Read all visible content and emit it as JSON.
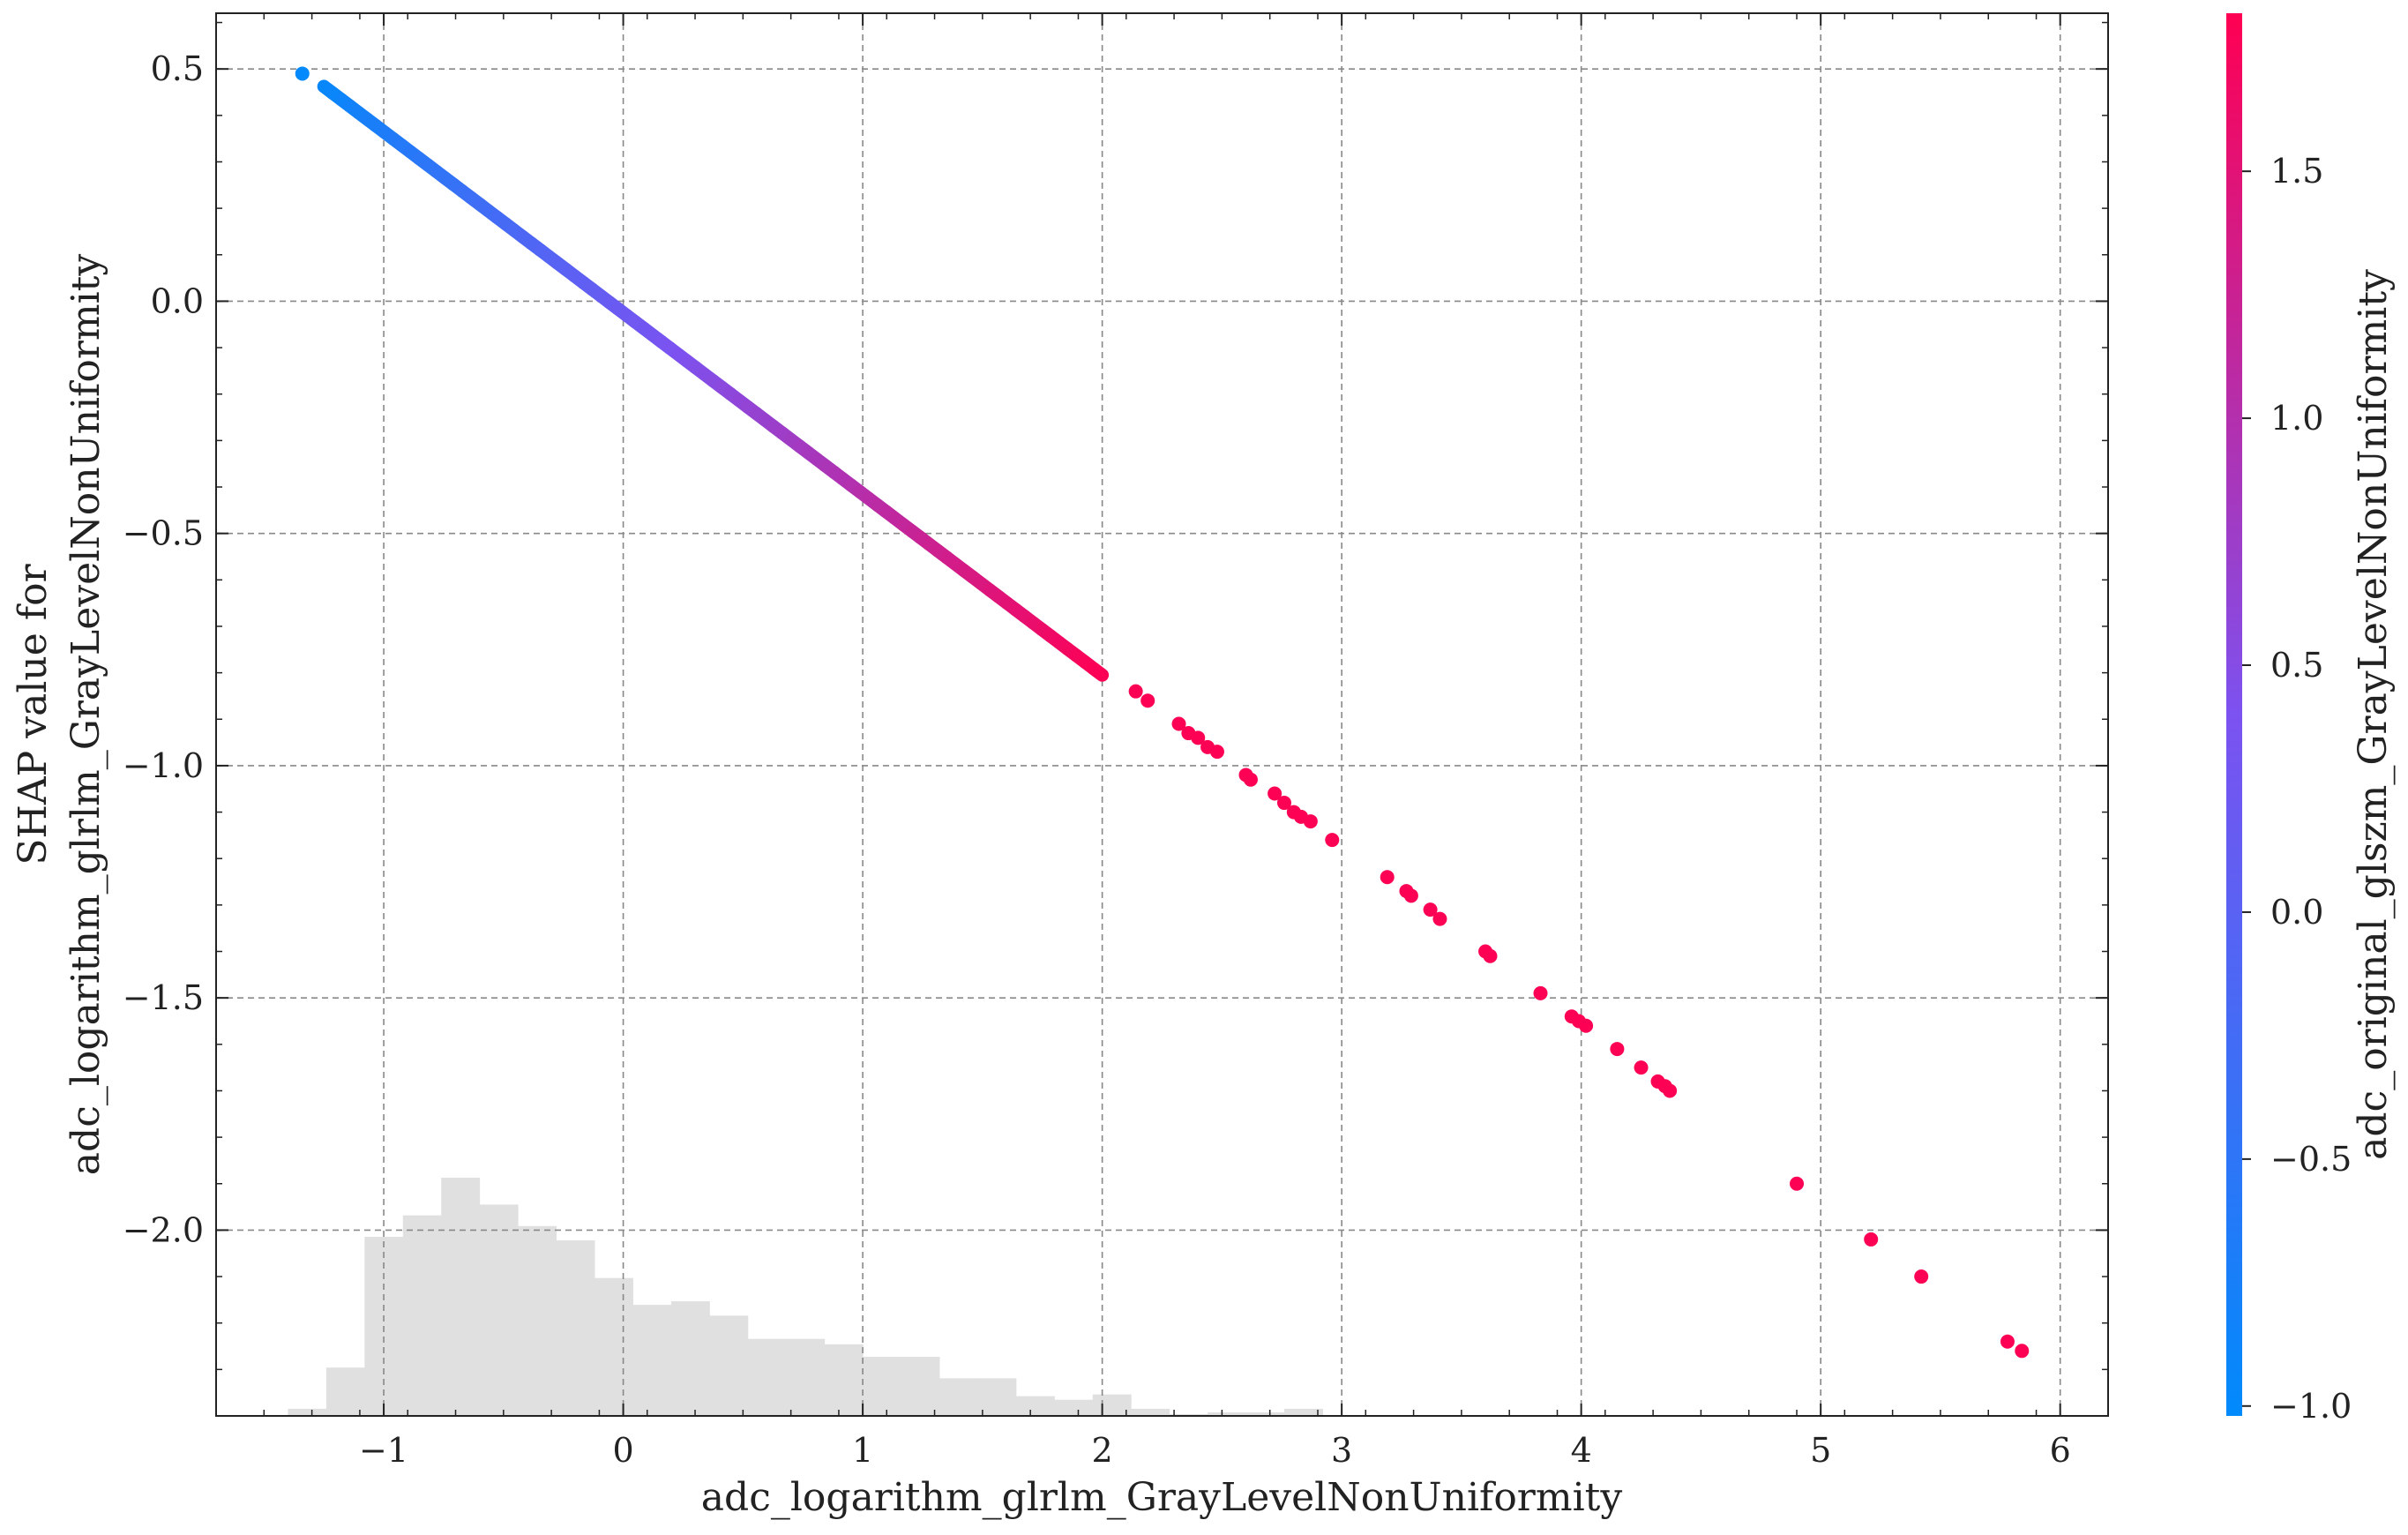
{
  "chart_data": {
    "type": "scatter",
    "title": "",
    "xlabel": "adc_logarithm_glrlm_GrayLevelNonUniformity",
    "ylabel_lines": [
      "SHAP value for",
      "adc_logarithm_glrlm_GrayLevelNonUniformity"
    ],
    "colorbar_label": "adc_original_glszm_GrayLevelNonUniformity",
    "xlim": [
      -1.7,
      6.2
    ],
    "ylim": [
      -2.4,
      0.62
    ],
    "x_ticks": [
      -1,
      0,
      1,
      2,
      3,
      4,
      5,
      6
    ],
    "x_tick_labels": [
      "−1",
      "0",
      "1",
      "2",
      "3",
      "4",
      "5",
      "6"
    ],
    "y_ticks": [
      0.5,
      0.0,
      -0.5,
      -1.0,
      -1.5,
      -2.0
    ],
    "y_tick_labels": [
      "0.5",
      "0.0",
      "−0.5",
      "−1.0",
      "−1.5",
      "−2.0"
    ],
    "colorbar_range": [
      -1.02,
      1.82
    ],
    "colorbar_ticks": [
      1.5,
      1.0,
      0.5,
      0.0,
      -0.5,
      -1.0
    ],
    "colorbar_tick_labels": [
      "1.5",
      "1.0",
      "0.5",
      "0.0",
      "−0.5",
      "−1.0"
    ],
    "colors": {
      "low": "#008afb",
      "mid": "#7c52f0",
      "high": "#ff0052",
      "grid": "#888888",
      "hist": "#e0e0e0"
    },
    "grid": true,
    "line_relation": {
      "slope": -0.39,
      "intercept": -0.025
    },
    "line_x_range": [
      -1.25,
      2.0
    ],
    "points": [
      {
        "x": -1.34,
        "y": 0.49,
        "c": -1.0
      },
      {
        "x": 2.14,
        "y": -0.84,
        "c": 1.8
      },
      {
        "x": 2.19,
        "y": -0.86,
        "c": 1.8
      },
      {
        "x": 2.32,
        "y": -0.91,
        "c": 1.8
      },
      {
        "x": 2.36,
        "y": -0.93,
        "c": 1.8
      },
      {
        "x": 2.4,
        "y": -0.94,
        "c": 1.8
      },
      {
        "x": 2.44,
        "y": -0.96,
        "c": 1.8
      },
      {
        "x": 2.48,
        "y": -0.97,
        "c": 1.8
      },
      {
        "x": 2.6,
        "y": -1.02,
        "c": 1.8
      },
      {
        "x": 2.62,
        "y": -1.03,
        "c": 1.8
      },
      {
        "x": 2.72,
        "y": -1.06,
        "c": 1.8
      },
      {
        "x": 2.76,
        "y": -1.08,
        "c": 1.8
      },
      {
        "x": 2.8,
        "y": -1.1,
        "c": 1.8
      },
      {
        "x": 2.83,
        "y": -1.11,
        "c": 1.8
      },
      {
        "x": 2.87,
        "y": -1.12,
        "c": 1.8
      },
      {
        "x": 2.96,
        "y": -1.16,
        "c": 1.8
      },
      {
        "x": 3.19,
        "y": -1.24,
        "c": 1.8
      },
      {
        "x": 3.27,
        "y": -1.27,
        "c": 1.8
      },
      {
        "x": 3.29,
        "y": -1.28,
        "c": 1.8
      },
      {
        "x": 3.37,
        "y": -1.31,
        "c": 1.8
      },
      {
        "x": 3.41,
        "y": -1.33,
        "c": 1.8
      },
      {
        "x": 3.6,
        "y": -1.4,
        "c": 1.8
      },
      {
        "x": 3.62,
        "y": -1.41,
        "c": 1.8
      },
      {
        "x": 3.83,
        "y": -1.49,
        "c": 1.8
      },
      {
        "x": 3.96,
        "y": -1.54,
        "c": 1.8
      },
      {
        "x": 3.99,
        "y": -1.55,
        "c": 1.8
      },
      {
        "x": 4.02,
        "y": -1.56,
        "c": 1.8
      },
      {
        "x": 4.15,
        "y": -1.61,
        "c": 1.8
      },
      {
        "x": 4.25,
        "y": -1.65,
        "c": 1.8
      },
      {
        "x": 4.32,
        "y": -1.68,
        "c": 1.8
      },
      {
        "x": 4.35,
        "y": -1.69,
        "c": 1.8
      },
      {
        "x": 4.37,
        "y": -1.7,
        "c": 1.8
      },
      {
        "x": 4.9,
        "y": -1.9,
        "c": 1.8
      },
      {
        "x": 5.21,
        "y": -2.02,
        "c": 1.8
      },
      {
        "x": 5.42,
        "y": -2.1,
        "c": 1.8
      },
      {
        "x": 5.78,
        "y": -2.24,
        "c": 1.8
      },
      {
        "x": 5.84,
        "y": -2.26,
        "c": 1.8
      }
    ],
    "histogram": {
      "bin_edges": [
        -1.4,
        -1.24,
        -1.08,
        -0.92,
        -0.76,
        -0.6,
        -0.44,
        -0.28,
        -0.12,
        0.04,
        0.2,
        0.36,
        0.52,
        0.68,
        0.84,
        1.0,
        1.16,
        1.32,
        1.48,
        1.64,
        1.8,
        1.96,
        2.12,
        2.28,
        2.44,
        2.6,
        2.76,
        2.92
      ],
      "counts": [
        4,
        27,
        100,
        112,
        133,
        118,
        106,
        98,
        77,
        62,
        64,
        56,
        43,
        43,
        40,
        33,
        33,
        21,
        21,
        11,
        9,
        12,
        4,
        1,
        2,
        2,
        4
      ]
    }
  }
}
